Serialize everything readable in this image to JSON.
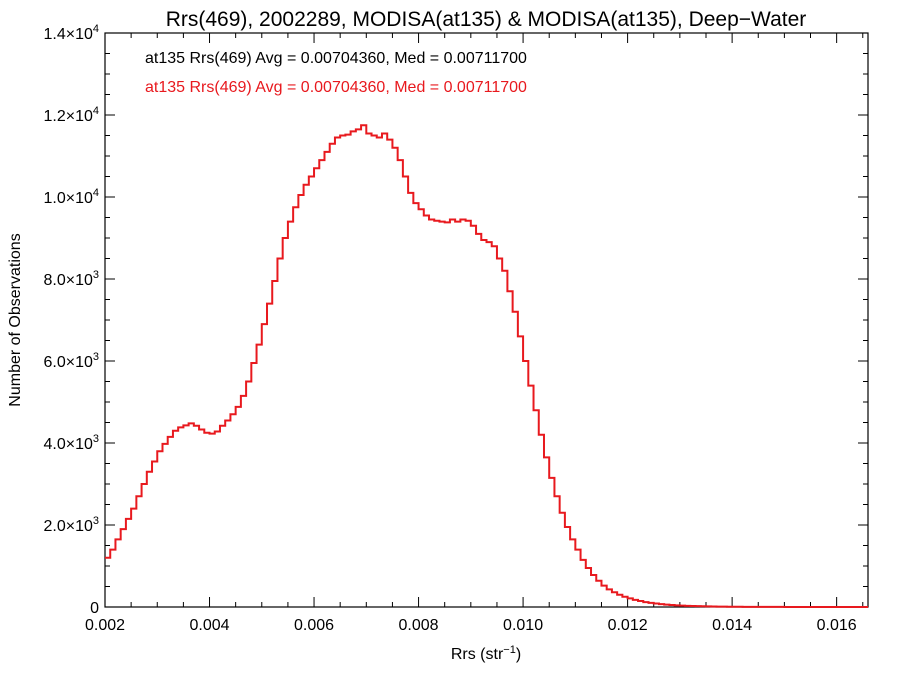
{
  "chart_data": {
    "type": "histogram-step",
    "title": "Rrs(469), 2002289, MODISA(at135) & MODISA(at135), Deep−Water",
    "xlabel": "Rrs (str",
    "xlabel_sup": "−1",
    "xlabel_close": ")",
    "ylabel": "Number of Observations",
    "xlim": [
      0.002,
      0.0166
    ],
    "ylim": [
      0,
      14000
    ],
    "x_ticks": [
      {
        "value": 0.002,
        "label": "0.002"
      },
      {
        "value": 0.004,
        "label": "0.004"
      },
      {
        "value": 0.006,
        "label": "0.006"
      },
      {
        "value": 0.008,
        "label": "0.008"
      },
      {
        "value": 0.01,
        "label": "0.010"
      },
      {
        "value": 0.012,
        "label": "0.012"
      },
      {
        "value": 0.014,
        "label": "0.014"
      },
      {
        "value": 0.016,
        "label": "0.016"
      }
    ],
    "y_ticks": [
      {
        "value": 0,
        "mant": "0",
        "exp": ""
      },
      {
        "value": 2000,
        "mant": "2.0×10",
        "exp": "3"
      },
      {
        "value": 4000,
        "mant": "4.0×10",
        "exp": "3"
      },
      {
        "value": 6000,
        "mant": "6.0×10",
        "exp": "3"
      },
      {
        "value": 8000,
        "mant": "8.0×10",
        "exp": "3"
      },
      {
        "value": 10000,
        "mant": "1.0×10",
        "exp": "4"
      },
      {
        "value": 12000,
        "mant": "1.2×10",
        "exp": "4"
      },
      {
        "value": 14000,
        "mant": "1.4×10",
        "exp": "4"
      }
    ],
    "legend": [
      {
        "text": "at135 Rrs(469) Avg = 0.00704360, Med = 0.00711700",
        "color": "#000000"
      },
      {
        "text": "at135 Rrs(469) Avg = 0.00704360, Med = 0.00711700",
        "color": "#e8191e"
      }
    ],
    "series": [
      {
        "color": "#e8191e",
        "points": [
          [
            0.002,
            1200
          ],
          [
            0.0021,
            1400
          ],
          [
            0.0022,
            1650
          ],
          [
            0.0023,
            1900
          ],
          [
            0.0024,
            2150
          ],
          [
            0.0025,
            2400
          ],
          [
            0.0026,
            2700
          ],
          [
            0.0027,
            3000
          ],
          [
            0.0028,
            3300
          ],
          [
            0.0029,
            3550
          ],
          [
            0.003,
            3800
          ],
          [
            0.0031,
            3980
          ],
          [
            0.0032,
            4150
          ],
          [
            0.0033,
            4300
          ],
          [
            0.0034,
            4380
          ],
          [
            0.0035,
            4430
          ],
          [
            0.0036,
            4480
          ],
          [
            0.0037,
            4420
          ],
          [
            0.0038,
            4330
          ],
          [
            0.0039,
            4250
          ],
          [
            0.004,
            4230
          ],
          [
            0.0041,
            4280
          ],
          [
            0.0042,
            4420
          ],
          [
            0.0043,
            4550
          ],
          [
            0.0044,
            4700
          ],
          [
            0.0045,
            4880
          ],
          [
            0.0046,
            5150
          ],
          [
            0.0047,
            5500
          ],
          [
            0.0048,
            5950
          ],
          [
            0.0049,
            6400
          ],
          [
            0.005,
            6900
          ],
          [
            0.0051,
            7400
          ],
          [
            0.0052,
            7950
          ],
          [
            0.0053,
            8500
          ],
          [
            0.0054,
            9000
          ],
          [
            0.0055,
            9400
          ],
          [
            0.0056,
            9750
          ],
          [
            0.0057,
            10050
          ],
          [
            0.0058,
            10300
          ],
          [
            0.0059,
            10500
          ],
          [
            0.006,
            10700
          ],
          [
            0.0061,
            10900
          ],
          [
            0.0062,
            11100
          ],
          [
            0.0063,
            11300
          ],
          [
            0.0064,
            11450
          ],
          [
            0.0065,
            11500
          ],
          [
            0.0066,
            11520
          ],
          [
            0.0067,
            11600
          ],
          [
            0.0068,
            11650
          ],
          [
            0.0069,
            11750
          ],
          [
            0.007,
            11550
          ],
          [
            0.0071,
            11500
          ],
          [
            0.0072,
            11450
          ],
          [
            0.0073,
            11550
          ],
          [
            0.0074,
            11400
          ],
          [
            0.0075,
            11200
          ],
          [
            0.0076,
            10900
          ],
          [
            0.0077,
            10500
          ],
          [
            0.0078,
            10100
          ],
          [
            0.0079,
            9850
          ],
          [
            0.008,
            9700
          ],
          [
            0.0081,
            9550
          ],
          [
            0.0082,
            9450
          ],
          [
            0.0083,
            9420
          ],
          [
            0.0084,
            9400
          ],
          [
            0.0085,
            9380
          ],
          [
            0.0086,
            9450
          ],
          [
            0.0087,
            9400
          ],
          [
            0.0088,
            9450
          ],
          [
            0.0089,
            9420
          ],
          [
            0.009,
            9300
          ],
          [
            0.0091,
            9100
          ],
          [
            0.0092,
            8950
          ],
          [
            0.0093,
            8900
          ],
          [
            0.0094,
            8800
          ],
          [
            0.0095,
            8500
          ],
          [
            0.0096,
            8200
          ],
          [
            0.0097,
            7700
          ],
          [
            0.0098,
            7200
          ],
          [
            0.0099,
            6600
          ],
          [
            0.01,
            6000
          ],
          [
            0.0101,
            5400
          ],
          [
            0.0102,
            4800
          ],
          [
            0.0103,
            4200
          ],
          [
            0.0104,
            3650
          ],
          [
            0.0105,
            3150
          ],
          [
            0.0106,
            2700
          ],
          [
            0.0107,
            2300
          ],
          [
            0.0108,
            1950
          ],
          [
            0.0109,
            1650
          ],
          [
            0.011,
            1400
          ],
          [
            0.0111,
            1150
          ],
          [
            0.0112,
            950
          ],
          [
            0.0113,
            780
          ],
          [
            0.0114,
            640
          ],
          [
            0.0115,
            520
          ],
          [
            0.0116,
            430
          ],
          [
            0.0117,
            360
          ],
          [
            0.0118,
            300
          ],
          [
            0.0119,
            250
          ],
          [
            0.012,
            210
          ],
          [
            0.0121,
            175
          ],
          [
            0.0122,
            145
          ],
          [
            0.0123,
            120
          ],
          [
            0.0124,
            100
          ],
          [
            0.0125,
            85
          ],
          [
            0.0126,
            70
          ],
          [
            0.0127,
            58
          ],
          [
            0.0128,
            48
          ],
          [
            0.0129,
            40
          ],
          [
            0.013,
            34
          ],
          [
            0.0131,
            28
          ],
          [
            0.0132,
            24
          ],
          [
            0.0133,
            20
          ],
          [
            0.0134,
            17
          ],
          [
            0.0135,
            14
          ],
          [
            0.0136,
            12
          ],
          [
            0.0137,
            10
          ],
          [
            0.0138,
            8
          ],
          [
            0.0139,
            7
          ],
          [
            0.014,
            6
          ],
          [
            0.0142,
            4
          ],
          [
            0.0144,
            3
          ],
          [
            0.0146,
            2
          ],
          [
            0.0148,
            2
          ],
          [
            0.015,
            1
          ],
          [
            0.0155,
            1
          ],
          [
            0.016,
            0
          ],
          [
            0.0166,
            0
          ]
        ]
      }
    ]
  }
}
